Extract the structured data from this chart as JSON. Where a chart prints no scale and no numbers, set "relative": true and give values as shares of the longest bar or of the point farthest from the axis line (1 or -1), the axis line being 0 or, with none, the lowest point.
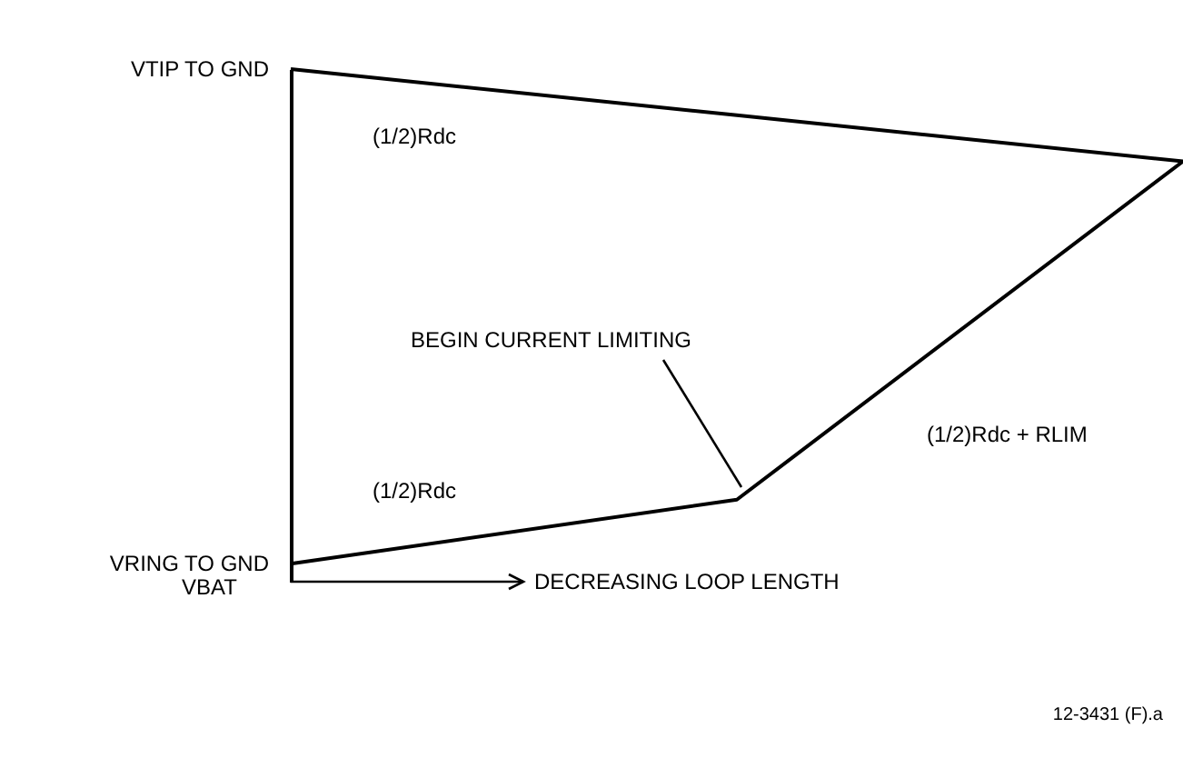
{
  "chart_data": {
    "type": "line",
    "relative": true,
    "categories": [
      null,
      null,
      null
    ],
    "series": [
      {
        "name": "VTIP TO GND",
        "color": "#000000",
        "values": [
          1,
          0.91,
          0.82
        ]
      },
      {
        "name": "VRING TO GND",
        "color": "#000000",
        "values": [
          0.035,
          0.16,
          0.82
        ]
      }
    ],
    "xlabel": "DECREASING LOOP LENGTH",
    "annotations": [
      "(1/2)Rdc",
      "BEGIN CURRENT LIMITING",
      "(1/2)Rdc",
      "(1/2)Rdc + RLIM",
      "VBAT",
      "12-3431 (F).a"
    ],
    "legend": false,
    "grid": false,
    "marker": "none",
    "line_style": "solid"
  }
}
